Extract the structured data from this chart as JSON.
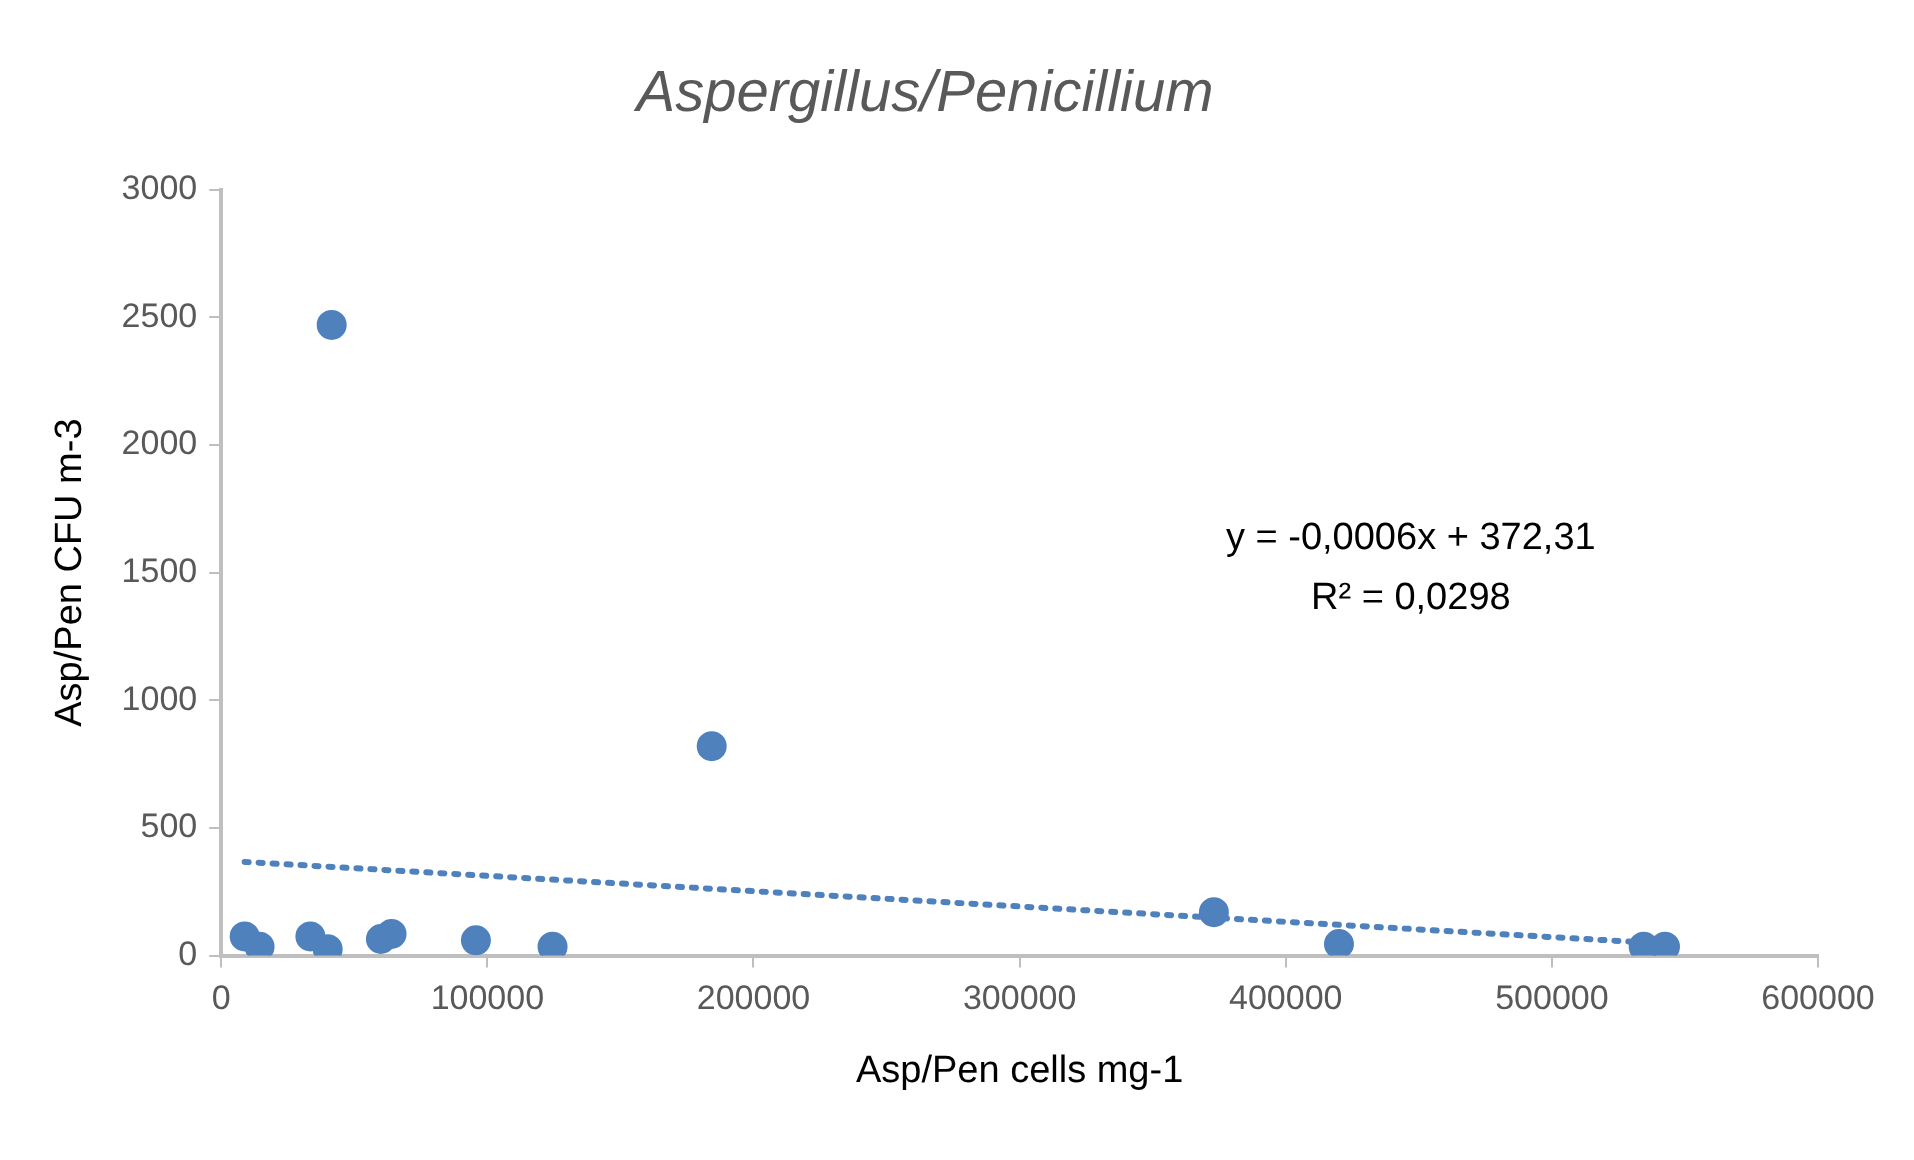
{
  "chart_data": {
    "type": "scatter",
    "title": "Aspergillus/Penicillium",
    "xlabel": "Asp/Pen cells mg-1",
    "ylabel": "Asp/Pen CFU m-3",
    "xlim": [
      0,
      600000
    ],
    "xticks": [
      0,
      100000,
      200000,
      300000,
      400000,
      500000,
      600000
    ],
    "ylim": [
      0,
      3000
    ],
    "yticks": [
      0,
      500,
      1000,
      1500,
      2000,
      2500,
      3000
    ],
    "grid": false,
    "legend": false,
    "marker": "circle",
    "series": [
      {
        "color": "#4f81bd",
        "x": [
          8800,
          14400,
          33500,
          40000,
          41500,
          60000,
          64000,
          95700,
          124500,
          184300,
          373000,
          420000,
          534500,
          542500
        ],
        "values": [
          75,
          35,
          75,
          25,
          2470,
          65,
          85,
          60,
          35,
          820,
          170,
          45,
          35,
          35
        ]
      },
      {
        "type": "line",
        "color": "#4f81bd",
        "line_style": "dotted",
        "marker": "none",
        "x": [
          8800,
          542500
        ],
        "values": [
          367,
          47
        ]
      }
    ],
    "annotations": [
      "y = -0,0006x + 372,31",
      "R² = 0,0298"
    ]
  }
}
